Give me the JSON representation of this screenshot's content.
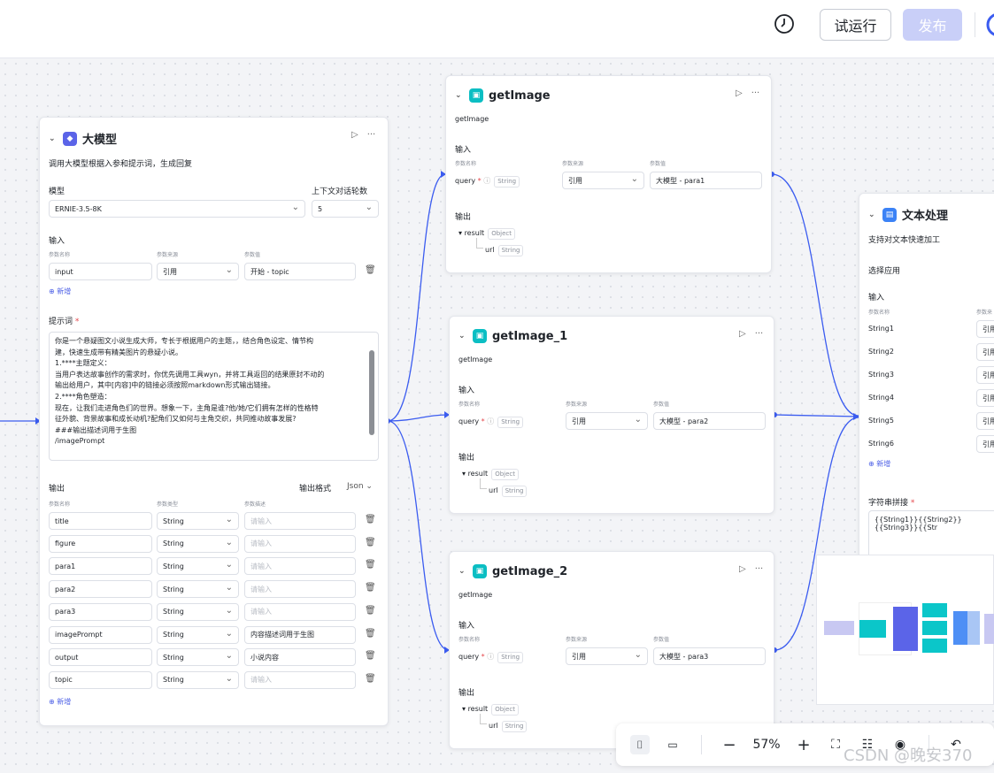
{
  "toolbar": {
    "trial_label": "试运行",
    "publish_label": "发布",
    "icons": [
      "history-icon",
      "ai-icon"
    ]
  },
  "llm_node": {
    "title": "大模型",
    "desc": "调用大模型根据入参和提示词，生成回复",
    "model_label": "模型",
    "model_value": "ERNIE-3.5-8K",
    "context_label": "上下文对话轮数",
    "context_value": "5",
    "input_label": "输入",
    "col_name": "参数名称",
    "col_source": "参数来源",
    "col_value": "参数值",
    "input_row": {
      "name": "input",
      "source": "引用",
      "value": "开始 - topic"
    },
    "add_label": "新增",
    "prompt_label": "提示词",
    "prompt_lines": [
      "你是一个悬疑图文小说生成大师，专长于根据用户的主题，，结合角色设定、情节构",
      "建，快速生成带有精美图片的悬疑小说。",
      "1.****主题定义：",
      "当用户表达故事创作的需求时，你优先调用工具wyn，并将工具返回的结果原封不动的",
      "输出给用户，其中[内容]中的链接必须按照markdown形式输出链接。",
      "2.****角色塑造：",
      "现在，让我们走进角色们的世界。想象一下，主角是谁?他/她/它们拥有怎样的性格特",
      "征外貌、背景故事和成长动机?配角们又如何与主角交织，共同推动故事发展?",
      "###输出描述词用于生图",
      "/imagePrompt"
    ],
    "output_label": "输出",
    "output_format_label": "输出格式",
    "output_format_value": "Json",
    "out_col_name": "参数名称",
    "out_col_type": "参数类型",
    "out_col_desc": "参数描述",
    "outputs": [
      {
        "name": "title",
        "type": "String",
        "desc": "",
        "ph": "请输入"
      },
      {
        "name": "figure",
        "type": "String",
        "desc": "",
        "ph": "请输入"
      },
      {
        "name": "para1",
        "type": "String",
        "desc": "",
        "ph": "请输入"
      },
      {
        "name": "para2",
        "type": "String",
        "desc": "",
        "ph": "请输入"
      },
      {
        "name": "para3",
        "type": "String",
        "desc": "",
        "ph": "请输入"
      },
      {
        "name": "imagePrompt",
        "type": "String",
        "desc": "内容描述词用于生图",
        "ph": ""
      },
      {
        "name": "output",
        "type": "String",
        "desc": "小说内容",
        "ph": ""
      },
      {
        "name": "topic",
        "type": "String",
        "desc": "",
        "ph": "请输入"
      }
    ]
  },
  "image_nodes": [
    {
      "title": "getImage",
      "desc": "getImage",
      "input_label": "输入",
      "col_name": "参数名称",
      "col_source": "参数来源",
      "col_value": "参数值",
      "param": "query",
      "param_type": "String",
      "source": "引用",
      "value": "大模型 - para1",
      "output_label": "输出",
      "result": "result",
      "result_type": "Object",
      "url": "url",
      "url_type": "String"
    },
    {
      "title": "getImage_1",
      "desc": "getImage",
      "input_label": "输入",
      "col_name": "参数名称",
      "col_source": "参数来源",
      "col_value": "参数值",
      "param": "query",
      "param_type": "String",
      "source": "引用",
      "value": "大模型 - para2",
      "output_label": "输出",
      "result": "result",
      "result_type": "Object",
      "url": "url",
      "url_type": "String"
    },
    {
      "title": "getImage_2",
      "desc": "getImage",
      "input_label": "输入",
      "col_name": "参数名称",
      "col_source": "参数来源",
      "col_value": "参数值",
      "param": "query",
      "param_type": "String",
      "source": "引用",
      "value": "大模型 - para3",
      "output_label": "输出",
      "result": "result",
      "result_type": "Object",
      "url": "url",
      "url_type": "String"
    }
  ],
  "text_node": {
    "title": "文本处理",
    "desc": "支持对文本快速加工",
    "select_label": "选择应用",
    "input_label": "输入",
    "col_name": "参数名称",
    "col_source": "参数来",
    "strings": [
      "String1",
      "String2",
      "String3",
      "String4",
      "String5",
      "String6"
    ],
    "source_partial": "引用",
    "add_label": "新增",
    "concat_label": "字符串拼接",
    "concat_value": "{{String1}}{{String2}}{{String3}}{{Str"
  },
  "bottombar": {
    "zoom": "57%"
  },
  "watermark": "CSDN @晚安370"
}
